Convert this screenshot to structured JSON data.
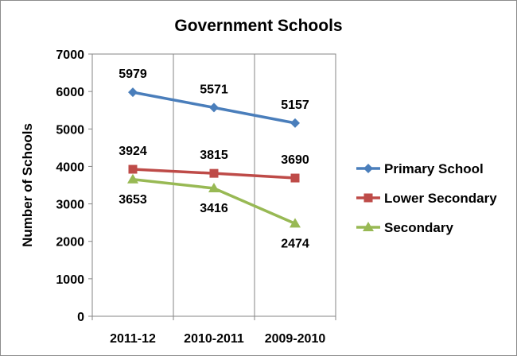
{
  "chart_data": {
    "type": "line",
    "title": "Government Schools",
    "xlabel": "",
    "ylabel": "Number of Schools",
    "categories": [
      "2011-12",
      "2010-2011",
      "2009-2010"
    ],
    "ylim": [
      0,
      7000
    ],
    "yticks": [
      0,
      1000,
      2000,
      3000,
      4000,
      5000,
      6000,
      7000
    ],
    "grid": "vertical",
    "legend_position": "right",
    "series": [
      {
        "name": "Primary School",
        "values": [
          5979,
          5571,
          5157
        ],
        "color": "#4a7ebb",
        "marker": "diamond"
      },
      {
        "name": "Lower Secondary",
        "values": [
          3924,
          3815,
          3690
        ],
        "color": "#be4b48",
        "marker": "square"
      },
      {
        "name": "Secondary",
        "values": [
          3653,
          3416,
          2474
        ],
        "color": "#98b954",
        "marker": "triangle"
      }
    ]
  }
}
